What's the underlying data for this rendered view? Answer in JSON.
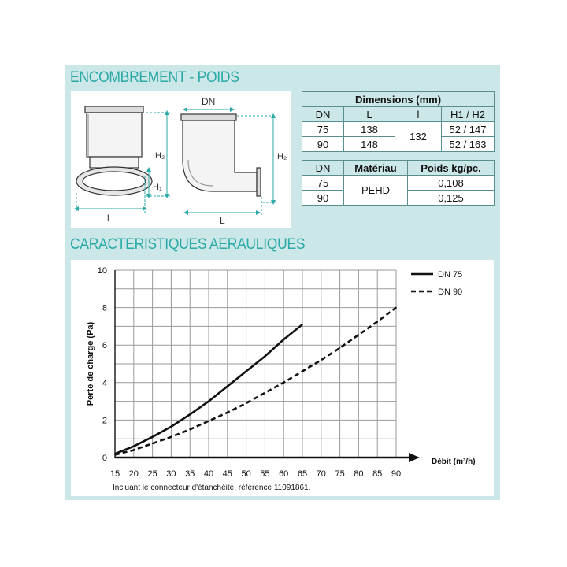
{
  "sections": {
    "dimensions_title": "ENCOMBREMENT - POIDS",
    "chart_title": "CARACTERISTIQUES AERAULIQUES"
  },
  "drawing_labels": {
    "h2_left": "H₂",
    "h1_left": "H₁",
    "l_bottom_left": "l",
    "dn_top": "DN",
    "h2_right": "H₂",
    "l_bottom_right": "L"
  },
  "dimensions_table": {
    "title": "Dimensions (mm)",
    "headers": [
      "DN",
      "L",
      "l",
      "H1 / H2"
    ],
    "rows": [
      {
        "dn": "75",
        "L": "138",
        "h": "52 / 147"
      },
      {
        "dn": "90",
        "L": "148",
        "h": "52 / 163"
      }
    ],
    "l_shared": "132"
  },
  "material_table": {
    "headers": [
      "DN",
      "Matériau",
      "Poids kg/pc."
    ],
    "rows": [
      {
        "dn": "75",
        "poids": "0,108"
      },
      {
        "dn": "90",
        "poids": "0,125"
      }
    ],
    "material_shared": "PEHD"
  },
  "colors": {
    "accent": "#2aa9a6",
    "panel": "#cbe7e7"
  },
  "chart_data": {
    "type": "line",
    "xlabel": "Débit (m³/h)",
    "ylabel": "Perte de charge (Pa)",
    "xlim": [
      15,
      90
    ],
    "ylim": [
      0,
      10
    ],
    "x_ticks": [
      "15",
      "20",
      "25",
      "30",
      "35",
      "40",
      "45",
      "50",
      "55",
      "60",
      "65",
      "70",
      "75",
      "80",
      "85",
      "90"
    ],
    "y_ticks": [
      "0",
      "2",
      "4",
      "6",
      "8",
      "10"
    ],
    "grid": true,
    "legend_position": "top-right",
    "series": [
      {
        "name": "DN 75",
        "style": "solid",
        "x": [
          15,
          20,
          25,
          30,
          35,
          40,
          45,
          50,
          55,
          60,
          65
        ],
        "y": [
          0.2,
          0.6,
          1.1,
          1.65,
          2.3,
          3.0,
          3.8,
          4.6,
          5.4,
          6.3,
          7.1
        ]
      },
      {
        "name": "DN 90",
        "style": "dashed",
        "x": [
          15,
          20,
          25,
          30,
          35,
          40,
          45,
          50,
          55,
          60,
          65,
          70,
          75,
          80,
          85,
          90
        ],
        "y": [
          0.15,
          0.4,
          0.75,
          1.1,
          1.5,
          1.95,
          2.4,
          2.9,
          3.45,
          4.0,
          4.6,
          5.2,
          5.85,
          6.55,
          7.25,
          8.0
        ]
      }
    ]
  },
  "note": "Incluant le connecteur d'étanchéité, référence 11091861."
}
